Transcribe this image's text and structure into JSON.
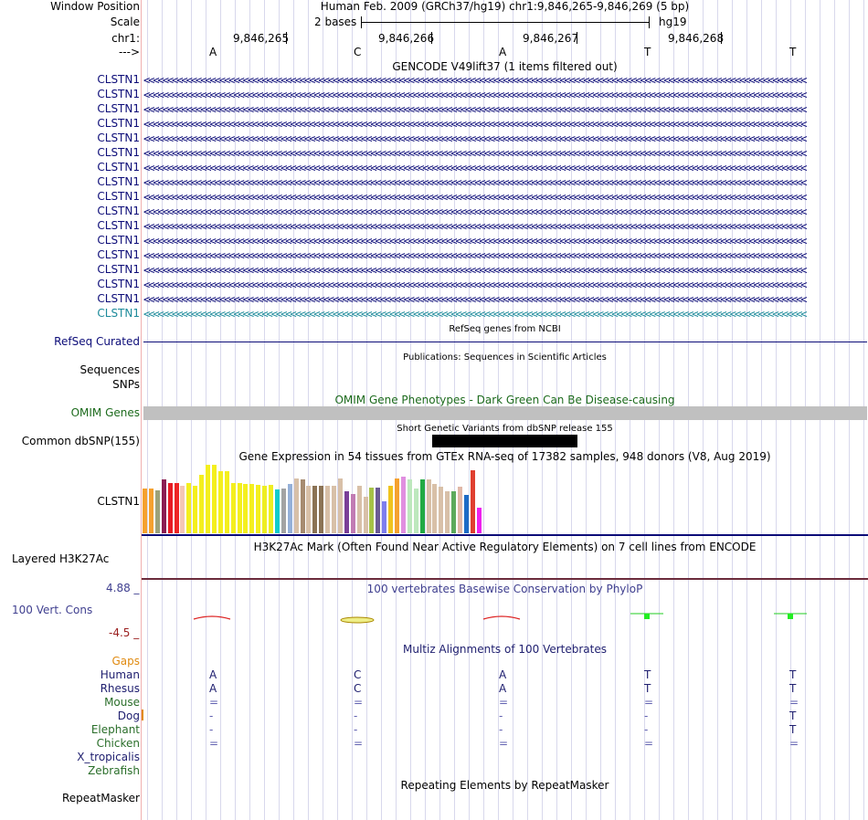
{
  "header": {
    "window_position_label": "Window Position",
    "window_position_value": "Human Feb. 2009 (GRCh37/hg19)   chr1:9,846,265-9,846,269 (5 bp)",
    "scale_label": "Scale",
    "scale_value": "2 bases",
    "scale_assembly": "hg19",
    "chrom_label": "chr1:",
    "strand_label": "--->",
    "positions": [
      "9,846,265",
      "9,846,266",
      "9,846,267",
      "9,846,268"
    ],
    "bases": [
      "A",
      "C",
      "A",
      "T",
      "T"
    ]
  },
  "gencode": {
    "title": "GENCODE V49lift37 (1 items filtered out)",
    "rows": [
      "CLSTN1",
      "CLSTN1",
      "CLSTN1",
      "CLSTN1",
      "CLSTN1",
      "CLSTN1",
      "CLSTN1",
      "CLSTN1",
      "CLSTN1",
      "CLSTN1",
      "CLSTN1",
      "CLSTN1",
      "CLSTN1",
      "CLSTN1",
      "CLSTN1",
      "CLSTN1",
      "CLSTN1"
    ]
  },
  "refseq": {
    "title": "RefSeq genes from NCBI",
    "label": "RefSeq Curated"
  },
  "pubs": {
    "title": "Publications: Sequences in Scientific Articles",
    "label1": "Sequences",
    "label2": "SNPs"
  },
  "omim": {
    "title": "OMIM Gene Phenotypes - Dark Green Can Be Disease-causing",
    "label": "OMIM Genes"
  },
  "dbsnp": {
    "title": "Short Genetic Variants from dbSNP release 155",
    "label": "Common dbSNP(155)"
  },
  "gtex": {
    "title": "Gene Expression in 54 tissues from GTEx RNA-seq of 17382 samples, 948 donors (V8, Aug 2019)",
    "label": "CLSTN1",
    "values": [
      0.64,
      0.64,
      0.61,
      0.77,
      0.72,
      0.72,
      0.68,
      0.72,
      0.67,
      0.83,
      0.98,
      0.98,
      0.88,
      0.88,
      0.72,
      0.71,
      0.7,
      0.7,
      0.69,
      0.67,
      0.69,
      0.62,
      0.64,
      0.7,
      0.78,
      0.76,
      0.68,
      0.68,
      0.68,
      0.68,
      0.68,
      0.78,
      0.6,
      0.56,
      0.68,
      0.52,
      0.65,
      0.65,
      0.45,
      0.68,
      0.78,
      0.8,
      0.77,
      0.63,
      0.77,
      0.77,
      0.7,
      0.66,
      0.6,
      0.6,
      0.66,
      0.55,
      0.9,
      0.36
    ],
    "colors": [
      "#f5a12f",
      "#f5a12f",
      "#9ca27b",
      "#8b1d52",
      "#e71b24",
      "#ee2424",
      "#f4c6b4",
      "#f4ef1e",
      "#f4ef1e",
      "#f4ef1e",
      "#f4ef1e",
      "#f4ef1e",
      "#f4ef1e",
      "#f4ef1e",
      "#f4ef1e",
      "#f4ef1e",
      "#f4ef1e",
      "#f4ef1e",
      "#f4ef1e",
      "#eeee22",
      "#eeee22",
      "#11cccc",
      "#a3a3a3",
      "#95b0d8",
      "#d8c0a8",
      "#a68b70",
      "#d8c0a8",
      "#8b7355",
      "#8b7355",
      "#d8c0a8",
      "#d8c0a8",
      "#d8c0a8",
      "#7a3f98",
      "#c17bb4",
      "#d8c0a8",
      "#d8c0a8",
      "#a6c247",
      "#6b5b95",
      "#7d7dee",
      "#efc31e",
      "#f5a12f",
      "#e08fe0",
      "#bde8bd",
      "#bde8bd",
      "#22aa44",
      "#d8c0a8",
      "#d8c0a8",
      "#d8c0a8",
      "#d8c0a8",
      "#5caa5c",
      "#e0b8a8",
      "#1d6cc6",
      "#e04030",
      "#ee22ee"
    ]
  },
  "h3k27ac": {
    "title": "H3K27Ac Mark (Often Found Near Active Regulatory Elements) on 7 cell lines from ENCODE",
    "label": "Layered H3K27Ac"
  },
  "phylop": {
    "title": "100 vertebrates Basewise Conservation by PhyloP",
    "label": "100 Vert. Cons",
    "max_label": "4.88 _",
    "min_label": "-4.5 _",
    "scores": [
      -0.5,
      -0.1,
      -0.4,
      0.9,
      0.9
    ]
  },
  "multiz": {
    "title": "Multiz Alignments of 100 Vertebrates",
    "gaps_label": "Gaps",
    "species": [
      {
        "name": "Human",
        "color": "#202070",
        "bases": [
          "A",
          "C",
          "A",
          "T",
          "T"
        ]
      },
      {
        "name": "Rhesus",
        "color": "#202070",
        "bases": [
          "A",
          "C",
          "A",
          "T",
          "T"
        ]
      },
      {
        "name": "Mouse",
        "color": "#2a6e2a",
        "bases": [
          "=",
          "=",
          "=",
          "=",
          "="
        ]
      },
      {
        "name": "Dog",
        "color": "#202070",
        "bases": [
          "-",
          "-",
          "-",
          "-",
          "T"
        ]
      },
      {
        "name": "Elephant",
        "color": "#2a6e2a",
        "bases": [
          "-",
          "-",
          "-",
          "-",
          "T"
        ]
      },
      {
        "name": "Chicken",
        "color": "#2a6e2a",
        "bases": [
          "=",
          "=",
          "=",
          "=",
          "="
        ]
      },
      {
        "name": "X_tropicalis",
        "color": "#202070",
        "bases": [
          "",
          "",
          "",
          "",
          ""
        ]
      },
      {
        "name": "Zebrafish",
        "color": "#2a6e2a",
        "bases": [
          "",
          "",
          "",
          "",
          ""
        ]
      }
    ]
  },
  "repeats": {
    "title": "Repeating Elements by RepeatMasker",
    "label": "RepeatMasker"
  },
  "colors": {
    "gene": "#0c0c78",
    "gene_last": "#1c8a9a",
    "omim": "#c0c0c0",
    "phylop_title": "#404090",
    "omim_title": "#1d6b1d",
    "gaps": "#e08a10"
  }
}
